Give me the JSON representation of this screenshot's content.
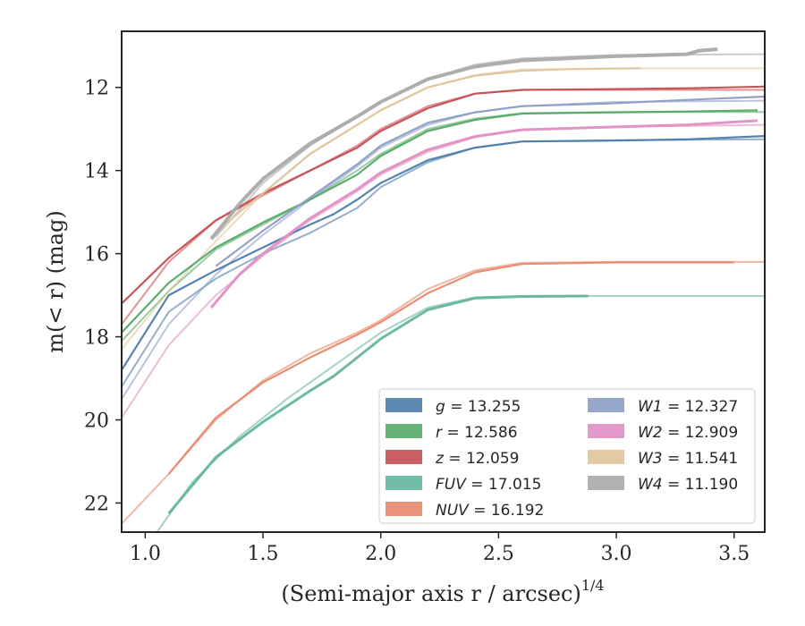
{
  "chart_data": {
    "type": "line",
    "title": "",
    "xlabel": "(Semi-major axis r / arcsec)",
    "xlabel_sup": "1/4",
    "ylabel": "m(< r) (mag)",
    "xlim": [
      0.9,
      3.63
    ],
    "ylim": [
      22.7,
      10.65
    ],
    "y_inverted": true,
    "grid": false,
    "legend_position": "lower-right",
    "legend_columns": 2,
    "xticks": [
      "1.0",
      "1.5",
      "2.0",
      "2.5",
      "3.0",
      "3.5"
    ],
    "yticks": [
      "12",
      "14",
      "16",
      "18",
      "20",
      "22"
    ],
    "series": [
      {
        "key": "g",
        "var": "g",
        "value": "13.255",
        "color": "#4c7cab",
        "model_x": [
          0.9,
          1.1,
          1.3,
          1.5,
          1.7,
          1.9,
          2.0,
          2.2,
          2.4,
          2.6,
          3.0,
          3.3,
          3.63
        ],
        "model_y": [
          19.2,
          17.4,
          16.6,
          16.0,
          15.5,
          14.9,
          14.4,
          13.8,
          13.45,
          13.3,
          13.27,
          13.26,
          13.25
        ],
        "data_x": [
          0.9,
          1.1,
          1.3,
          1.5,
          1.7,
          1.8,
          1.9,
          2.0,
          2.2,
          2.4,
          2.6,
          3.0,
          3.3,
          3.63
        ],
        "data_y": [
          18.8,
          17.0,
          16.4,
          15.85,
          15.3,
          15.05,
          14.7,
          14.3,
          13.75,
          13.45,
          13.3,
          13.28,
          13.25,
          13.17
        ]
      },
      {
        "key": "r",
        "var": "r",
        "value": "12.586",
        "color": "#55a868",
        "model_x": [
          0.9,
          1.1,
          1.3,
          1.5,
          1.7,
          1.9,
          2.0,
          2.2,
          2.4,
          2.6,
          3.0,
          3.3,
          3.63
        ],
        "model_y": [
          18.1,
          16.9,
          15.9,
          15.3,
          14.7,
          14.0,
          13.6,
          13.0,
          12.75,
          12.62,
          12.59,
          12.59,
          12.59
        ],
        "data_x": [
          0.9,
          1.1,
          1.3,
          1.5,
          1.7,
          1.9,
          2.0,
          2.2,
          2.4,
          2.6,
          3.0,
          3.3,
          3.6
        ],
        "data_y": [
          17.9,
          16.7,
          15.85,
          15.25,
          14.7,
          14.1,
          13.65,
          13.05,
          12.78,
          12.63,
          12.6,
          12.58,
          12.55
        ]
      },
      {
        "key": "z",
        "var": "z",
        "value": "12.059",
        "color": "#c44e52",
        "model_x": [
          0.9,
          1.1,
          1.3,
          1.5,
          1.7,
          1.9,
          2.0,
          2.2,
          2.4,
          2.6,
          3.0,
          3.3,
          3.63
        ],
        "model_y": [
          17.7,
          16.2,
          15.2,
          14.6,
          14.0,
          13.4,
          13.0,
          12.45,
          12.15,
          12.06,
          12.06,
          12.06,
          12.06
        ],
        "data_x": [
          0.9,
          1.1,
          1.3,
          1.5,
          1.7,
          1.9,
          2.0,
          2.2,
          2.4,
          2.6,
          3.0,
          3.3,
          3.63
        ],
        "data_y": [
          17.2,
          16.1,
          15.2,
          14.55,
          14.0,
          13.45,
          13.05,
          12.5,
          12.15,
          12.06,
          12.04,
          12.02,
          11.98
        ]
      },
      {
        "key": "fuv",
        "var": "FUV",
        "value": "17.015",
        "color": "#64b5a0",
        "model_x": [
          1.05,
          1.2,
          1.4,
          1.6,
          1.8,
          2.0,
          2.2,
          2.4,
          2.6,
          3.0,
          3.63
        ],
        "model_y": [
          22.7,
          21.5,
          20.4,
          19.5,
          18.7,
          17.9,
          17.3,
          17.05,
          17.02,
          17.02,
          17.02
        ],
        "data_x": [
          1.1,
          1.3,
          1.5,
          1.7,
          1.8,
          2.0,
          2.2,
          2.4,
          2.6,
          2.88
        ],
        "data_y": [
          22.25,
          20.9,
          20.05,
          19.3,
          18.95,
          18.05,
          17.35,
          17.07,
          17.03,
          17.02
        ]
      },
      {
        "key": "nuv",
        "var": "NUV",
        "value": "16.192",
        "color": "#e8876b",
        "model_x": [
          0.9,
          1.1,
          1.3,
          1.5,
          1.7,
          1.9,
          2.0,
          2.2,
          2.4,
          2.6,
          3.0,
          3.63
        ],
        "model_y": [
          22.5,
          21.3,
          20.0,
          19.05,
          18.4,
          17.9,
          17.6,
          16.85,
          16.4,
          16.22,
          16.2,
          16.2
        ],
        "data_x": [
          1.1,
          1.3,
          1.5,
          1.7,
          1.9,
          2.0,
          2.2,
          2.4,
          2.6,
          3.0,
          3.5
        ],
        "data_y": [
          21.3,
          19.95,
          19.1,
          18.5,
          17.95,
          17.65,
          16.95,
          16.45,
          16.25,
          16.21,
          16.21
        ]
      },
      {
        "key": "w1",
        "var": "W1",
        "value": "12.327",
        "color": "#8c9dc4",
        "model_x": [
          0.9,
          1.1,
          1.3,
          1.5,
          1.7,
          1.9,
          2.0,
          2.2,
          2.4,
          2.6,
          3.0,
          3.63
        ],
        "model_y": [
          19.5,
          17.7,
          16.5,
          15.55,
          14.7,
          13.9,
          13.45,
          12.9,
          12.6,
          12.45,
          12.35,
          12.32
        ],
        "data_x": [
          1.3,
          1.5,
          1.7,
          1.9,
          2.0,
          2.2,
          2.4,
          2.6,
          3.0,
          3.3,
          3.63
        ],
        "data_y": [
          16.3,
          15.45,
          14.65,
          13.85,
          13.4,
          12.85,
          12.6,
          12.45,
          12.38,
          12.3,
          12.22
        ]
      },
      {
        "key": "w2",
        "var": "W2",
        "value": "12.909",
        "color": "#e08fc4",
        "model_x": [
          0.9,
          1.1,
          1.3,
          1.5,
          1.7,
          1.9,
          2.0,
          2.2,
          2.4,
          2.6,
          3.0,
          3.63
        ],
        "model_y": [
          19.95,
          18.2,
          17.0,
          16.05,
          15.2,
          14.5,
          14.1,
          13.55,
          13.2,
          13.02,
          12.95,
          12.9
        ],
        "data_x": [
          1.28,
          1.4,
          1.5,
          1.7,
          1.9,
          2.0,
          2.2,
          2.4,
          2.6,
          3.0,
          3.3,
          3.6
        ],
        "data_y": [
          17.3,
          16.5,
          16.0,
          15.15,
          14.45,
          14.05,
          13.5,
          13.18,
          13.02,
          12.95,
          12.9,
          12.8
        ]
      },
      {
        "key": "w3",
        "var": "W3",
        "value": "11.541",
        "color": "#dfc49a",
        "model_x": [
          0.9,
          1.1,
          1.3,
          1.5,
          1.7,
          1.9,
          2.0,
          2.2,
          2.4,
          2.6,
          3.0,
          3.63
        ],
        "model_y": [
          18.3,
          16.9,
          15.7,
          14.55,
          13.6,
          12.9,
          12.55,
          12.0,
          11.7,
          11.57,
          11.54,
          11.54
        ],
        "data_x": [
          1.28,
          1.4,
          1.5,
          1.7,
          1.9,
          2.0,
          2.2,
          2.4,
          2.6,
          2.8,
          3.1
        ],
        "data_y": [
          15.6,
          15.0,
          14.55,
          13.6,
          12.9,
          12.55,
          12.0,
          11.72,
          11.6,
          11.56,
          11.54
        ]
      },
      {
        "key": "w4",
        "var": "W4",
        "value": "11.190",
        "color": "#aaaaaa",
        "model_x": [
          1.3,
          1.5,
          1.7,
          1.9,
          2.0,
          2.2,
          2.4,
          2.6,
          3.0,
          3.63
        ],
        "model_y": [
          15.6,
          14.3,
          13.4,
          12.7,
          12.35,
          11.8,
          11.45,
          11.3,
          11.22,
          11.2
        ],
        "data_x": [
          1.28,
          1.4,
          1.5,
          1.7,
          1.9,
          2.0,
          2.2,
          2.4,
          2.6,
          3.0,
          3.3,
          3.35,
          3.43
        ],
        "data_y": [
          15.65,
          14.8,
          14.2,
          13.35,
          12.7,
          12.35,
          11.8,
          11.5,
          11.35,
          11.25,
          11.2,
          11.12,
          11.08
        ]
      }
    ],
    "legend": [
      {
        "key": "g",
        "col": 0,
        "row": 0
      },
      {
        "key": "r",
        "col": 0,
        "row": 1
      },
      {
        "key": "z",
        "col": 0,
        "row": 2
      },
      {
        "key": "fuv",
        "col": 0,
        "row": 3
      },
      {
        "key": "nuv",
        "col": 0,
        "row": 4
      },
      {
        "key": "w1",
        "col": 1,
        "row": 0
      },
      {
        "key": "w2",
        "col": 1,
        "row": 1
      },
      {
        "key": "w3",
        "col": 1,
        "row": 2
      },
      {
        "key": "w4",
        "col": 1,
        "row": 3
      }
    ]
  }
}
